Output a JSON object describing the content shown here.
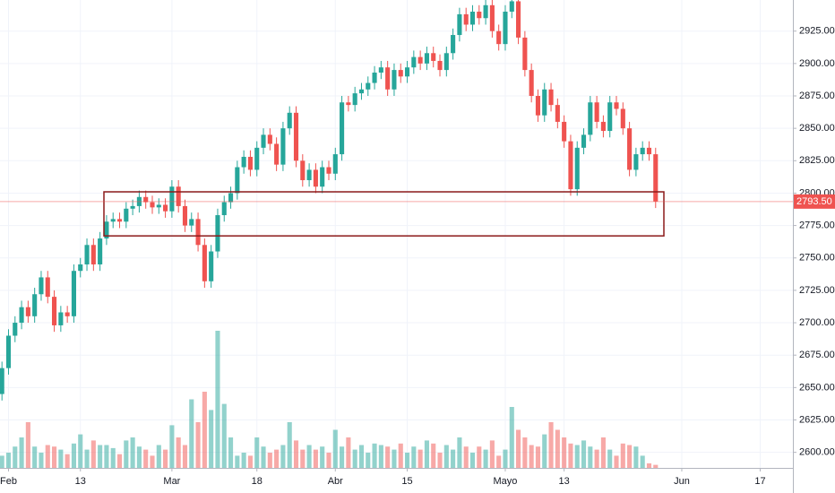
{
  "chart_data": {
    "type": "candlestick",
    "open": [
      2645,
      2665,
      2690,
      2700,
      2712,
      2705,
      2722,
      2735,
      2720,
      2698,
      2708,
      2705,
      2740,
      2745,
      2760,
      2745,
      2765,
      2778,
      2780,
      2778,
      2788,
      2790,
      2797,
      2793,
      2789,
      2791,
      2786,
      2805,
      2790,
      2775,
      2780,
      2760,
      2732,
      2755,
      2783,
      2793,
      2800,
      2820,
      2828,
      2818,
      2835,
      2845,
      2838,
      2822,
      2850,
      2862,
      2825,
      2810,
      2818,
      2805,
      2820,
      2815,
      2830,
      2870,
      2868,
      2877,
      2880,
      2885,
      2893,
      2897,
      2880,
      2895,
      2890,
      2897,
      2905,
      2900,
      2908,
      2902,
      2895,
      2908,
      2922,
      2938,
      2930,
      2940,
      2935,
      2945,
      2925,
      2915,
      2940,
      2948,
      2920,
      2895,
      2875,
      2860,
      2880,
      2868,
      2855,
      2840,
      2803,
      2835,
      2845,
      2870,
      2855,
      2848,
      2870,
      2865,
      2850,
      2818,
      2830,
      2835,
      2830
    ],
    "high": [
      2670,
      2695,
      2705,
      2717,
      2717,
      2727,
      2740,
      2740,
      2725,
      2713,
      2713,
      2745,
      2750,
      2765,
      2765,
      2770,
      2783,
      2785,
      2785,
      2793,
      2795,
      2802,
      2802,
      2798,
      2796,
      2796,
      2810,
      2810,
      2795,
      2785,
      2785,
      2765,
      2760,
      2788,
      2798,
      2805,
      2825,
      2833,
      2833,
      2840,
      2850,
      2850,
      2843,
      2855,
      2867,
      2867,
      2830,
      2823,
      2823,
      2825,
      2825,
      2835,
      2875,
      2875,
      2882,
      2885,
      2890,
      2898,
      2902,
      2902,
      2900,
      2900,
      2902,
      2910,
      2910,
      2913,
      2913,
      2907,
      2913,
      2927,
      2943,
      2943,
      2945,
      2945,
      2950,
      2950,
      2930,
      2945,
      2953,
      2953,
      2925,
      2900,
      2880,
      2885,
      2885,
      2873,
      2860,
      2845,
      2840,
      2850,
      2875,
      2875,
      2860,
      2875,
      2875,
      2870,
      2855,
      2835,
      2840,
      2840,
      2835
    ],
    "low": [
      2640,
      2660,
      2685,
      2695,
      2700,
      2700,
      2717,
      2715,
      2693,
      2693,
      2700,
      2700,
      2735,
      2740,
      2740,
      2740,
      2760,
      2773,
      2773,
      2773,
      2783,
      2785,
      2788,
      2784,
      2784,
      2781,
      2781,
      2785,
      2770,
      2770,
      2755,
      2727,
      2727,
      2750,
      2778,
      2788,
      2795,
      2815,
      2813,
      2813,
      2830,
      2833,
      2817,
      2817,
      2845,
      2820,
      2805,
      2805,
      2800,
      2800,
      2810,
      2810,
      2825,
      2863,
      2863,
      2872,
      2875,
      2880,
      2888,
      2875,
      2875,
      2885,
      2885,
      2892,
      2895,
      2895,
      2897,
      2890,
      2890,
      2903,
      2917,
      2925,
      2925,
      2930,
      2930,
      2920,
      2910,
      2910,
      2935,
      2915,
      2890,
      2870,
      2855,
      2855,
      2863,
      2850,
      2835,
      2798,
      2798,
      2830,
      2840,
      2850,
      2843,
      2843,
      2860,
      2845,
      2813,
      2813,
      2825,
      2825,
      2788.5
    ],
    "close": [
      2665,
      2690,
      2700,
      2712,
      2705,
      2722,
      2735,
      2720,
      2698,
      2708,
      2705,
      2740,
      2745,
      2760,
      2745,
      2765,
      2778,
      2780,
      2778,
      2788,
      2790,
      2797,
      2793,
      2789,
      2791,
      2786,
      2805,
      2790,
      2775,
      2780,
      2760,
      2732,
      2755,
      2783,
      2793,
      2800,
      2820,
      2828,
      2818,
      2835,
      2845,
      2838,
      2822,
      2850,
      2862,
      2825,
      2810,
      2818,
      2805,
      2820,
      2815,
      2830,
      2870,
      2868,
      2877,
      2880,
      2885,
      2893,
      2897,
      2880,
      2895,
      2890,
      2897,
      2905,
      2900,
      2908,
      2902,
      2895,
      2908,
      2922,
      2938,
      2930,
      2940,
      2935,
      2945,
      2925,
      2915,
      2940,
      2948,
      2920,
      2895,
      2875,
      2860,
      2880,
      2868,
      2855,
      2840,
      2803,
      2835,
      2845,
      2870,
      2855,
      2848,
      2870,
      2865,
      2850,
      2818,
      2830,
      2835,
      2830,
      2793.5
    ],
    "volume": [
      8,
      10,
      14,
      20,
      30,
      14,
      10,
      15,
      14,
      12,
      9,
      16,
      22,
      12,
      18,
      15,
      15,
      13,
      9,
      18,
      20,
      14,
      12,
      8,
      15,
      12,
      28,
      20,
      15,
      45,
      30,
      50,
      38,
      90,
      42,
      20,
      8,
      10,
      8,
      20,
      14,
      10,
      12,
      15,
      30,
      18,
      12,
      15,
      12,
      14,
      10,
      25,
      14,
      20,
      12,
      15,
      10,
      16,
      15,
      14,
      12,
      16,
      10,
      14,
      12,
      18,
      16,
      10,
      15,
      12,
      20,
      14,
      10,
      14,
      12,
      18,
      8,
      12,
      40,
      25,
      20,
      15,
      14,
      22,
      30,
      25,
      20,
      16,
      15,
      18,
      14,
      12,
      20,
      12,
      8,
      16,
      15,
      14,
      8,
      3,
      2
    ],
    "up_color": "#26a69a",
    "down_color": "#ef5350",
    "volume_opacity": 0.5,
    "xlim": [
      -0.3,
      121
    ],
    "xticks": [
      {
        "value": 1,
        "label": "Feb"
      },
      {
        "value": 12,
        "label": "13"
      },
      {
        "value": 26,
        "label": "Mar"
      },
      {
        "value": 39,
        "label": "18"
      },
      {
        "value": 51,
        "label": "Abr"
      },
      {
        "value": 62,
        "label": "15"
      },
      {
        "value": 77,
        "label": "Mayo"
      },
      {
        "value": 86,
        "label": "13"
      },
      {
        "value": 104,
        "label": "Jun"
      },
      {
        "value": 116,
        "label": "17"
      }
    ],
    "ylim": [
      2588,
      2949
    ],
    "yticks": [
      {
        "value": 2600,
        "label": "2600.00"
      },
      {
        "value": 2625,
        "label": "2625.00"
      },
      {
        "value": 2650,
        "label": "2650.00"
      },
      {
        "value": 2675,
        "label": "2675.00"
      },
      {
        "value": 2700,
        "label": "2700.00"
      },
      {
        "value": 2725,
        "label": "2725.00"
      },
      {
        "value": 2750,
        "label": "2750.00"
      },
      {
        "value": 2775,
        "label": "2775.00"
      },
      {
        "value": 2800,
        "label": "2800.00"
      },
      {
        "value": 2825,
        "label": "2825.00"
      },
      {
        "value": 2850,
        "label": "2850.00"
      },
      {
        "value": 2875,
        "label": "2875.00"
      },
      {
        "value": 2900,
        "label": "2900.00"
      },
      {
        "value": 2925,
        "label": "2925.00"
      }
    ],
    "y2lim": [
      0,
      100
    ],
    "grid": true,
    "last_price": {
      "value": 2793.5,
      "label": "2793.50"
    },
    "zone": {
      "from": 2767,
      "to": 2801,
      "color": "#8b1a1a"
    }
  }
}
